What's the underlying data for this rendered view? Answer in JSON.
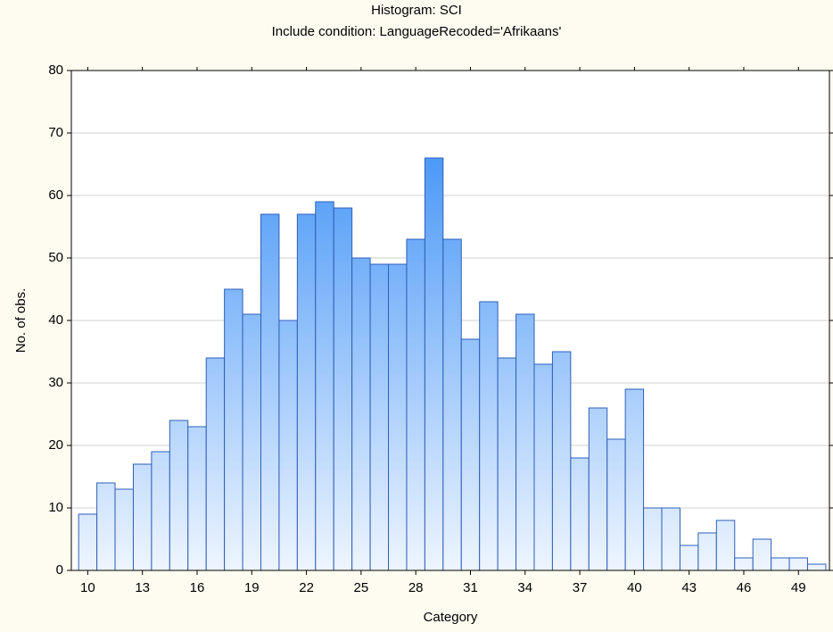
{
  "chart_data": {
    "type": "histogram",
    "title": "Histogram: SCI",
    "subtitle": "Include condition: LanguageRecoded='Afrikaans'",
    "x_label": "Category",
    "y_label": "No. of obs.",
    "bins": [
      9.5,
      10.5,
      11.5,
      12.5,
      13.5,
      14.5,
      15.5,
      16.5,
      17.5,
      18.5,
      19.5,
      20.5,
      21.5,
      22.5,
      23.5,
      24.5,
      25.5,
      26.5,
      27.5,
      28.5,
      29.5,
      30.5,
      31.5,
      32.5,
      33.5,
      34.5,
      35.5,
      36.5,
      37.5,
      38.5,
      39.5,
      40.5,
      41.5,
      42.5,
      43.5,
      44.5,
      45.5,
      46.5,
      47.5,
      48.5,
      49.5,
      50.5
    ],
    "counts": [
      9,
      14,
      13,
      17,
      19,
      24,
      23,
      34,
      45,
      41,
      57,
      40,
      57,
      59,
      58,
      50,
      49,
      49,
      53,
      66,
      53,
      37,
      43,
      34,
      41,
      33,
      35,
      18,
      26,
      21,
      29,
      10,
      10,
      4,
      6,
      8,
      2,
      5,
      2,
      2,
      1
    ],
    "color": "#2a86f5",
    "xlim": [
      9.1,
      50.7
    ],
    "xticks": [
      10,
      13,
      16,
      19,
      22,
      25,
      28,
      31,
      34,
      37,
      40,
      43,
      46,
      49
    ],
    "ylim": [
      0,
      80
    ],
    "yticks": [
      0,
      10,
      20,
      30,
      40,
      50,
      60,
      70,
      80
    ],
    "grid": true
  }
}
